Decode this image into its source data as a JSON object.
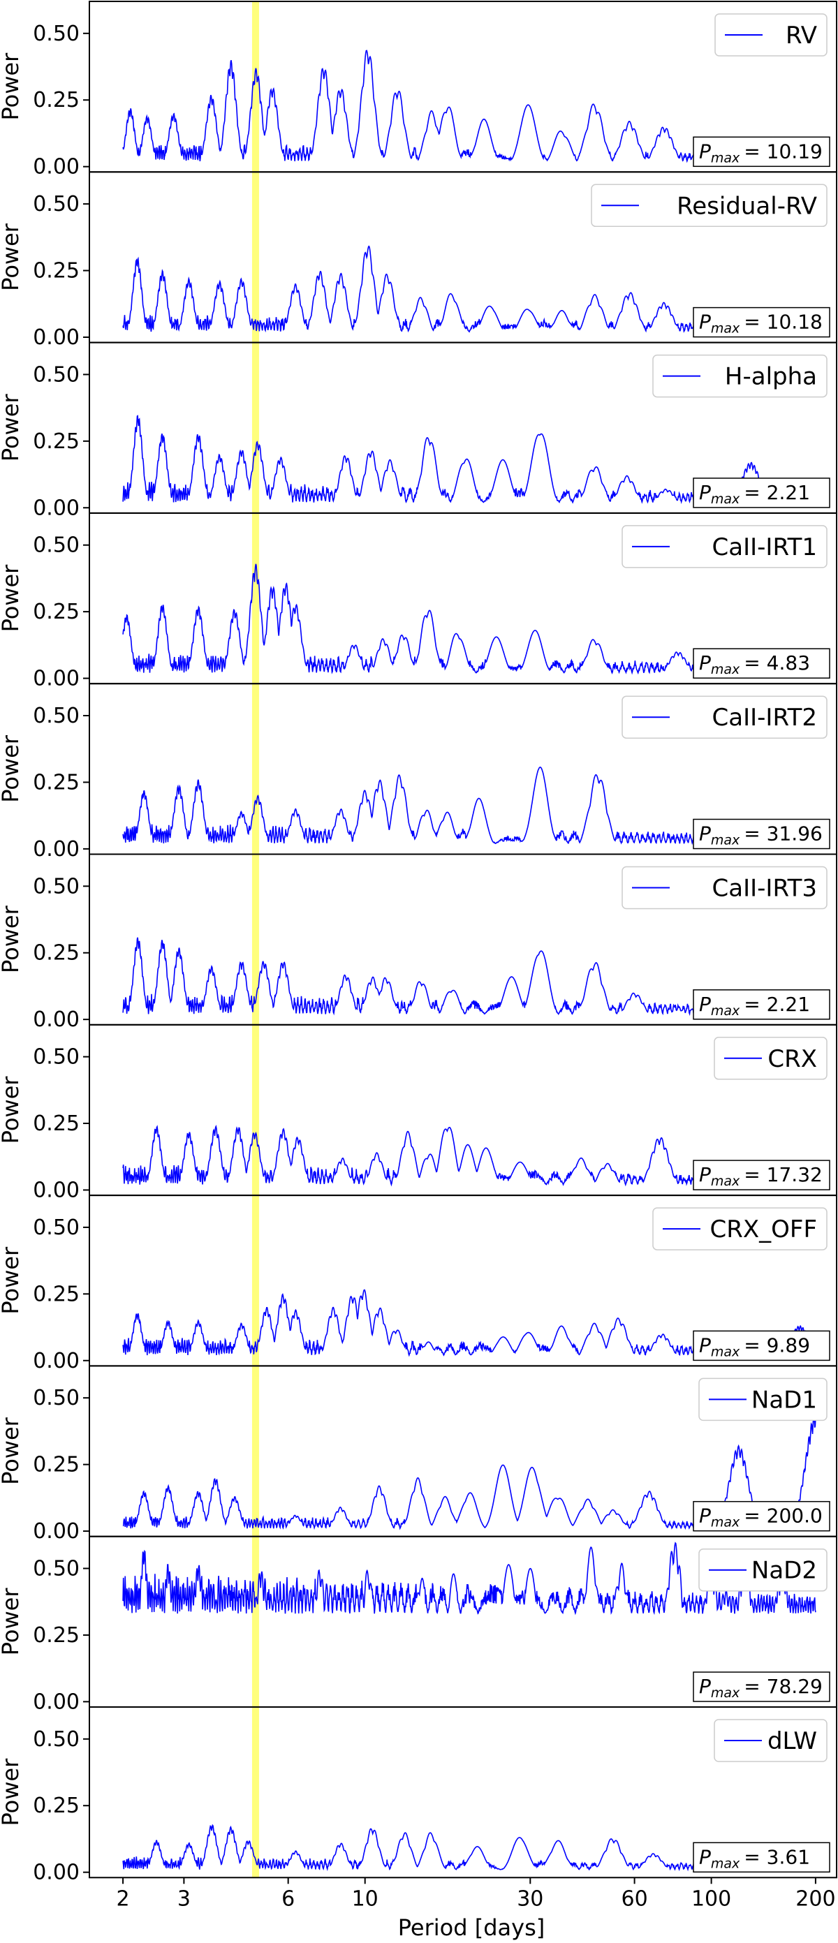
{
  "chart_data": {
    "type": "line",
    "xlabel": "Period [days]",
    "ylabel": "Power",
    "xscale": "log",
    "xlim": [
      1.6,
      230
    ],
    "ylim": [
      -0.02,
      0.62
    ],
    "x_ticks": [
      2,
      3,
      6,
      10,
      30,
      60,
      100,
      200
    ],
    "x_tick_labels": [
      "2",
      "3",
      "6",
      "10",
      "30",
      "60",
      "100",
      "200"
    ],
    "y_ticks": [
      0.0,
      0.25,
      0.5
    ],
    "y_tick_labels": [
      "0.00",
      "0.25",
      "0.50"
    ],
    "highlight_band": {
      "period": 4.83,
      "color": "#ffff66"
    },
    "line_color": "#0000ff",
    "legend_placement": "top-right",
    "annotation_placement": "bottom-right",
    "panels": [
      {
        "name": "RV",
        "pmax_prefix": "P",
        "pmax_sub": "max",
        "pmax_value": "= 10.19",
        "base": 0.02,
        "amp": 0.07,
        "peaks": [
          [
            2.1,
            0.22
          ],
          [
            2.35,
            0.19
          ],
          [
            2.8,
            0.2
          ],
          [
            3.6,
            0.27
          ],
          [
            4.1,
            0.4
          ],
          [
            4.85,
            0.37
          ],
          [
            5.4,
            0.3
          ],
          [
            7.6,
            0.38
          ],
          [
            8.5,
            0.3
          ],
          [
            10.19,
            0.45
          ],
          [
            12.4,
            0.3
          ],
          [
            15.6,
            0.21
          ],
          [
            17.3,
            0.24
          ],
          [
            22,
            0.18
          ],
          [
            29.5,
            0.24
          ],
          [
            37,
            0.14
          ],
          [
            46,
            0.24
          ],
          [
            58,
            0.17
          ],
          [
            73,
            0.15
          ],
          [
            96,
            0.1
          ],
          [
            140,
            0.08
          ]
        ]
      },
      {
        "name": "Residual-RV",
        "pmax_prefix": "P",
        "pmax_sub": "max",
        "pmax_value": "= 10.18",
        "base": 0.02,
        "amp": 0.07,
        "peaks": [
          [
            2.2,
            0.3
          ],
          [
            2.6,
            0.25
          ],
          [
            3.1,
            0.22
          ],
          [
            3.8,
            0.21
          ],
          [
            4.4,
            0.22
          ],
          [
            6.3,
            0.2
          ],
          [
            7.4,
            0.25
          ],
          [
            8.5,
            0.24
          ],
          [
            10.18,
            0.35
          ],
          [
            11.6,
            0.24
          ],
          [
            14.5,
            0.15
          ],
          [
            17.8,
            0.17
          ],
          [
            23,
            0.13
          ],
          [
            29.5,
            0.12
          ],
          [
            37,
            0.1
          ],
          [
            46,
            0.16
          ],
          [
            58,
            0.17
          ],
          [
            73,
            0.13
          ],
          [
            95,
            0.08
          ],
          [
            150,
            0.07
          ]
        ]
      },
      {
        "name": "H-alpha",
        "pmax_prefix": "P",
        "pmax_sub": "max",
        "pmax_value": "= 2.21",
        "base": 0.02,
        "amp": 0.08,
        "peaks": [
          [
            2.21,
            0.35
          ],
          [
            2.6,
            0.28
          ],
          [
            3.3,
            0.28
          ],
          [
            3.8,
            0.2
          ],
          [
            4.4,
            0.22
          ],
          [
            4.9,
            0.25
          ],
          [
            5.7,
            0.19
          ],
          [
            8.8,
            0.2
          ],
          [
            10.4,
            0.22
          ],
          [
            11.8,
            0.18
          ],
          [
            15.3,
            0.28
          ],
          [
            19.5,
            0.2
          ],
          [
            25,
            0.18
          ],
          [
            32,
            0.32
          ],
          [
            46,
            0.16
          ],
          [
            57,
            0.12
          ],
          [
            74,
            0.07
          ],
          [
            130,
            0.17
          ]
        ]
      },
      {
        "name": "CaII-IRT1",
        "pmax_prefix": "P",
        "pmax_sub": "max",
        "pmax_value": "= 4.83",
        "base": 0.02,
        "amp": 0.08,
        "peaks": [
          [
            2.05,
            0.24
          ],
          [
            2.6,
            0.28
          ],
          [
            3.3,
            0.27
          ],
          [
            4.2,
            0.26
          ],
          [
            4.83,
            0.43
          ],
          [
            5.4,
            0.35
          ],
          [
            5.9,
            0.36
          ],
          [
            6.3,
            0.28
          ],
          [
            9.3,
            0.13
          ],
          [
            11.3,
            0.15
          ],
          [
            12.9,
            0.17
          ],
          [
            15.2,
            0.27
          ],
          [
            18.5,
            0.18
          ],
          [
            24,
            0.16
          ],
          [
            31,
            0.18
          ],
          [
            46,
            0.15
          ],
          [
            80,
            0.1
          ]
        ]
      },
      {
        "name": "CaII-IRT2",
        "pmax_prefix": "P",
        "pmax_sub": "max",
        "pmax_value": "= 31.96",
        "base": 0.02,
        "amp": 0.08,
        "peaks": [
          [
            2.3,
            0.22
          ],
          [
            2.9,
            0.24
          ],
          [
            3.3,
            0.26
          ],
          [
            4.4,
            0.14
          ],
          [
            4.9,
            0.2
          ],
          [
            6.3,
            0.15
          ],
          [
            8.5,
            0.15
          ],
          [
            10,
            0.22
          ],
          [
            11,
            0.26
          ],
          [
            12.6,
            0.28
          ],
          [
            15,
            0.15
          ],
          [
            17.2,
            0.14
          ],
          [
            21.3,
            0.19
          ],
          [
            31.96,
            0.31
          ],
          [
            47,
            0.29
          ],
          [
            65,
            0.03
          ],
          [
            110,
            0.03
          ]
        ]
      },
      {
        "name": "CaII-IRT3",
        "pmax_prefix": "P",
        "pmax_sub": "max",
        "pmax_value": "= 2.21",
        "base": 0.02,
        "amp": 0.08,
        "peaks": [
          [
            2.21,
            0.31
          ],
          [
            2.6,
            0.3
          ],
          [
            2.9,
            0.27
          ],
          [
            3.6,
            0.2
          ],
          [
            4.4,
            0.22
          ],
          [
            5.1,
            0.22
          ],
          [
            5.8,
            0.22
          ],
          [
            8.8,
            0.17
          ],
          [
            10.5,
            0.16
          ],
          [
            11.5,
            0.16
          ],
          [
            14.5,
            0.15
          ],
          [
            17.8,
            0.12
          ],
          [
            26.5,
            0.16
          ],
          [
            32,
            0.29
          ],
          [
            46,
            0.22
          ],
          [
            60,
            0.1
          ],
          [
            80,
            0.04
          ],
          [
            140,
            0.02
          ]
        ]
      },
      {
        "name": "CRX",
        "pmax_prefix": "P",
        "pmax_sub": "max",
        "pmax_value": "= 17.32",
        "base": 0.02,
        "amp": 0.08,
        "peaks": [
          [
            2.5,
            0.24
          ],
          [
            3.1,
            0.22
          ],
          [
            3.7,
            0.24
          ],
          [
            4.3,
            0.24
          ],
          [
            4.8,
            0.22
          ],
          [
            5.8,
            0.23
          ],
          [
            6.4,
            0.2
          ],
          [
            8.6,
            0.12
          ],
          [
            10.8,
            0.14
          ],
          [
            13.3,
            0.22
          ],
          [
            15.3,
            0.14
          ],
          [
            17.32,
            0.26
          ],
          [
            19.8,
            0.17
          ],
          [
            22.3,
            0.16
          ],
          [
            28,
            0.11
          ],
          [
            42,
            0.12
          ],
          [
            50,
            0.1
          ],
          [
            71,
            0.2
          ],
          [
            150,
            0.03
          ]
        ]
      },
      {
        "name": "CRX_OFF",
        "pmax_prefix": "P",
        "pmax_sub": "max",
        "pmax_value": "= 9.89",
        "base": 0.02,
        "amp": 0.07,
        "peaks": [
          [
            2.2,
            0.18
          ],
          [
            2.7,
            0.15
          ],
          [
            3.3,
            0.15
          ],
          [
            4.4,
            0.14
          ],
          [
            5.2,
            0.2
          ],
          [
            5.8,
            0.25
          ],
          [
            6.3,
            0.19
          ],
          [
            8.1,
            0.2
          ],
          [
            9.2,
            0.25
          ],
          [
            9.89,
            0.27
          ],
          [
            11,
            0.2
          ],
          [
            12.3,
            0.12
          ],
          [
            15.2,
            0.07
          ],
          [
            25,
            0.1
          ],
          [
            29.5,
            0.12
          ],
          [
            37,
            0.13
          ],
          [
            46,
            0.14
          ],
          [
            54,
            0.16
          ],
          [
            72,
            0.1
          ],
          [
            96,
            0.09
          ],
          [
            180,
            0.13
          ]
        ]
      },
      {
        "name": "NaD1",
        "pmax_prefix": "P",
        "pmax_sub": "max",
        "pmax_value": "= 200.0",
        "base": 0.01,
        "amp": 0.05,
        "peaks": [
          [
            2.3,
            0.15
          ],
          [
            2.7,
            0.17
          ],
          [
            3.3,
            0.15
          ],
          [
            3.7,
            0.2
          ],
          [
            4.2,
            0.13
          ],
          [
            6.3,
            0.06
          ],
          [
            8.5,
            0.09
          ],
          [
            11,
            0.17
          ],
          [
            14.2,
            0.2
          ],
          [
            17,
            0.13
          ],
          [
            20,
            0.15
          ],
          [
            25,
            0.25
          ],
          [
            30.5,
            0.26
          ],
          [
            36,
            0.14
          ],
          [
            44,
            0.12
          ],
          [
            52,
            0.08
          ],
          [
            66,
            0.15
          ],
          [
            120,
            0.32
          ],
          [
            200,
            0.44
          ]
        ]
      },
      {
        "name": "NaD2",
        "pmax_prefix": "P",
        "pmax_sub": "max",
        "pmax_value": "= 78.29",
        "base": 0.33,
        "amp": 0.16,
        "peaks": [
          [
            2.3,
            0.58
          ],
          [
            2.7,
            0.52
          ],
          [
            3.3,
            0.52
          ],
          [
            5,
            0.5
          ],
          [
            7.4,
            0.5
          ],
          [
            10.2,
            0.5
          ],
          [
            14.5,
            0.48
          ],
          [
            18,
            0.48
          ],
          [
            26,
            0.54
          ],
          [
            30,
            0.5
          ],
          [
            45,
            0.58
          ],
          [
            55,
            0.52
          ],
          [
            78.29,
            0.6
          ],
          [
            100,
            0.49
          ],
          [
            110,
            0.42
          ],
          [
            125,
            0.5
          ],
          [
            160,
            0.48
          ]
        ]
      },
      {
        "name": "dLW",
        "pmax_prefix": "P",
        "pmax_sub": "max",
        "pmax_value": "= 3.61",
        "base": 0.01,
        "amp": 0.05,
        "peaks": [
          [
            2.5,
            0.12
          ],
          [
            3.1,
            0.11
          ],
          [
            3.61,
            0.18
          ],
          [
            4.1,
            0.17
          ],
          [
            4.6,
            0.12
          ],
          [
            6.3,
            0.08
          ],
          [
            8.5,
            0.11
          ],
          [
            10.5,
            0.17
          ],
          [
            13,
            0.15
          ],
          [
            15.5,
            0.15
          ],
          [
            21,
            0.1
          ],
          [
            28,
            0.15
          ],
          [
            36,
            0.12
          ],
          [
            52,
            0.13
          ],
          [
            68,
            0.07
          ],
          [
            105,
            0.06
          ],
          [
            150,
            0.05
          ]
        ]
      }
    ]
  }
}
